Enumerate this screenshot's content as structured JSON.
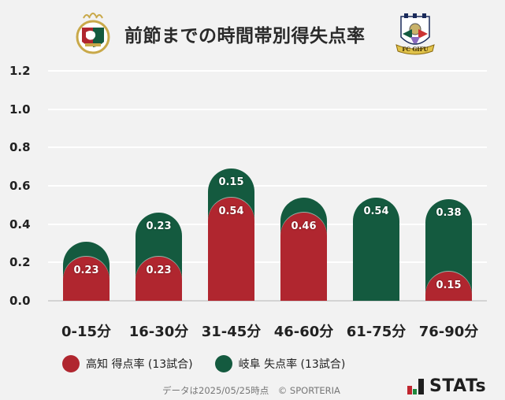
{
  "header": {
    "title": "前節までの時間帯別得失点率",
    "home_logo": "kochi-united-crest",
    "away_logo": "fc-gifu-crest"
  },
  "colors": {
    "background": "#f2f2f2",
    "home": "#b0262f",
    "away": "#145a3f",
    "gridline": "#ffffff",
    "text": "#222222"
  },
  "chart_data": {
    "type": "bar",
    "stacked": true,
    "title": "前節までの時間帯別得失点率",
    "xlabel": "",
    "ylabel": "",
    "ylim": [
      0,
      1.2
    ],
    "yticks": [
      "0.0",
      "0.2",
      "0.4",
      "0.6",
      "0.8",
      "1.0",
      "1.2"
    ],
    "grid": true,
    "legend_position": "bottom",
    "categories": [
      "0-15分",
      "16-30分",
      "31-45分",
      "46-60分",
      "61-75分",
      "76-90分"
    ],
    "series": [
      {
        "name": "高知 得点率 (13試合)",
        "color": "#b0262f",
        "values": [
          0.23,
          0.23,
          0.54,
          0.46,
          0,
          0.15
        ],
        "labels": [
          "0.23",
          "0.23",
          "0.54",
          "0.46",
          "",
          "0.15"
        ]
      },
      {
        "name": "岐阜 失点率 (13試合)",
        "color": "#145a3f",
        "values": [
          0,
          0.23,
          0.15,
          0,
          0.54,
          0.38
        ],
        "labels": [
          "",
          "0.23",
          "0.15",
          "",
          "0.54",
          "0.38"
        ]
      }
    ]
  },
  "legend": [
    {
      "label": "高知 得点率 (13試合)",
      "color": "#b0262f"
    },
    {
      "label": "岐阜 失点率 (13試合)",
      "color": "#145a3f"
    }
  ],
  "footer": {
    "note": "データは2025/05/25時点　© SPORTERIA",
    "brand": "STATs"
  }
}
